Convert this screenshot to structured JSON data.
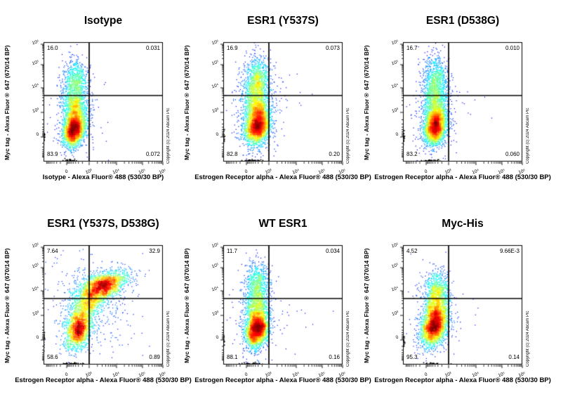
{
  "chart_data": {
    "type": "scatter",
    "subtype": "flow-cytometry-pseudocolor-grid",
    "grid": {
      "rows": 2,
      "cols": 3
    },
    "copyright": "Copyright (c) 2024 Abcam Plc",
    "axes": {
      "y_label": "Myc tag - Alexa Fluor® 647 (670/14 BP)",
      "x_scale": "biexponential",
      "y_scale": "biexponential",
      "x_tick_labels": [
        "0",
        "10³",
        "10⁴",
        "10⁵",
        "10⁶"
      ],
      "y_tick_labels": [
        "10⁶",
        "10⁵",
        "10⁴",
        "10³",
        "0"
      ],
      "x_range": [
        "<0",
        "10⁶"
      ],
      "y_range": [
        "<0",
        "10⁶"
      ],
      "x_quadrant_gate": "10³",
      "y_quadrant_gate": "6×10³"
    },
    "plots": [
      {
        "title": "Isotype",
        "x_label": "Isotype - Alexa Fluor® 488 (530/30 BP)",
        "quadrants": {
          "ul": "16.0",
          "ur": "0.031",
          "ll": "83.9",
          "lr": "0.072"
        },
        "seed": 1234,
        "clusters": [
          {
            "fx": 0.255,
            "fy": 0.735,
            "sx": 0.042,
            "sy": 0.07,
            "n": 2400,
            "rot": 14
          },
          {
            "fx": 0.265,
            "fy": 0.565,
            "sx": 0.052,
            "sy": 0.095,
            "n": 1150,
            "rot": 0
          },
          {
            "fx": 0.27,
            "fy": 0.335,
            "sx": 0.05,
            "sy": 0.095,
            "n": 780,
            "rot": 0
          },
          {
            "fx": 0.265,
            "fy": 0.56,
            "sx": 0.095,
            "sy": 0.21,
            "n": 260,
            "rot": 0
          },
          {
            "fx": 0.5,
            "fy": 0.45,
            "sx": 0.1,
            "sy": 0.15,
            "n": 8,
            "rot": 0
          },
          {
            "fx": 0.23,
            "fy": 1.0,
            "sx": 0.035,
            "sy": 0.008,
            "n": 70,
            "rot": 0,
            "edge": true
          },
          {
            "fx": 0.0,
            "fy": 0.795,
            "sx": 0.006,
            "sy": 0.03,
            "n": 50,
            "rot": 0,
            "edge": true
          }
        ]
      },
      {
        "title": "ESR1 (Y537S)",
        "x_label": "Estrogen Receptor alpha - Alexa Fluor® 488 (530/30 BP)",
        "quadrants": {
          "ul": "16.9",
          "ur": "0.073",
          "ll": "82.8",
          "lr": "0.20"
        },
        "seed": 2011,
        "clusters": [
          {
            "fx": 0.285,
            "fy": 0.705,
            "sx": 0.05,
            "sy": 0.08,
            "n": 2400,
            "rot": 14
          },
          {
            "fx": 0.28,
            "fy": 0.53,
            "sx": 0.055,
            "sy": 0.105,
            "n": 1250,
            "rot": 0
          },
          {
            "fx": 0.285,
            "fy": 0.315,
            "sx": 0.052,
            "sy": 0.1,
            "n": 820,
            "rot": 0
          },
          {
            "fx": 0.28,
            "fy": 0.54,
            "sx": 0.1,
            "sy": 0.23,
            "n": 300,
            "rot": 0
          },
          {
            "fx": 0.5,
            "fy": 0.4,
            "sx": 0.1,
            "sy": 0.12,
            "n": 18,
            "rot": 0
          },
          {
            "fx": 0.24,
            "fy": 1.0,
            "sx": 0.04,
            "sy": 0.008,
            "n": 80,
            "rot": 0,
            "edge": true
          },
          {
            "fx": 0.0,
            "fy": 0.795,
            "sx": 0.006,
            "sy": 0.03,
            "n": 45,
            "rot": 0,
            "edge": true
          }
        ]
      },
      {
        "title": "ESR1 (D538G)",
        "x_label": "Estrogen Receptor alpha - Alexa Fluor® 488 (530/30 BP)",
        "quadrants": {
          "ul": "16.7",
          "ur": "0.010",
          "ll": "83.2",
          "lr": "0.060"
        },
        "seed": 3077,
        "clusters": [
          {
            "fx": 0.27,
            "fy": 0.715,
            "sx": 0.044,
            "sy": 0.075,
            "n": 2400,
            "rot": 12
          },
          {
            "fx": 0.27,
            "fy": 0.54,
            "sx": 0.05,
            "sy": 0.105,
            "n": 1200,
            "rot": 0
          },
          {
            "fx": 0.275,
            "fy": 0.315,
            "sx": 0.05,
            "sy": 0.1,
            "n": 800,
            "rot": 0
          },
          {
            "fx": 0.27,
            "fy": 0.56,
            "sx": 0.09,
            "sy": 0.22,
            "n": 280,
            "rot": 0
          },
          {
            "fx": 0.5,
            "fy": 0.5,
            "sx": 0.1,
            "sy": 0.14,
            "n": 8,
            "rot": 0
          },
          {
            "fx": 0.235,
            "fy": 1.0,
            "sx": 0.04,
            "sy": 0.008,
            "n": 70,
            "rot": 0,
            "edge": true
          },
          {
            "fx": 0.0,
            "fy": 0.795,
            "sx": 0.006,
            "sy": 0.03,
            "n": 45,
            "rot": 0,
            "edge": true
          }
        ]
      },
      {
        "title": "ESR1 (Y537S, D538G)",
        "x_label": "Estrogen Receptor alpha - Alexa Fluor® 488 (530/30 BP)",
        "quadrants": {
          "ul": "7.64",
          "ur": "32.9",
          "ll": "58.6",
          "lr": "0.89"
        },
        "seed": 4099,
        "clusters": [
          {
            "fx": 0.295,
            "fy": 0.705,
            "sx": 0.05,
            "sy": 0.085,
            "n": 1700,
            "rot": 16
          },
          {
            "fx": 0.375,
            "fy": 0.49,
            "sx": 0.1,
            "sy": 0.052,
            "n": 950,
            "rot": -42
          },
          {
            "fx": 0.5,
            "fy": 0.335,
            "sx": 0.105,
            "sy": 0.05,
            "n": 2000,
            "rot": -20
          },
          {
            "fx": 0.4,
            "fy": 0.5,
            "sx": 0.17,
            "sy": 0.2,
            "n": 420,
            "rot": -30
          },
          {
            "fx": 0.25,
            "fy": 1.0,
            "sx": 0.05,
            "sy": 0.008,
            "n": 90,
            "rot": 0,
            "edge": true
          },
          {
            "fx": 0.0,
            "fy": 0.795,
            "sx": 0.006,
            "sy": 0.035,
            "n": 40,
            "rot": 0,
            "edge": true
          }
        ]
      },
      {
        "title": "WT ESR1",
        "x_label": "Estrogen Receptor alpha - Alexa Fluor® 488 (530/30 BP)",
        "quadrants": {
          "ul": "11.7",
          "ur": "0.034",
          "ll": "88.1",
          "lr": "0.16"
        },
        "seed": 5333,
        "clusters": [
          {
            "fx": 0.28,
            "fy": 0.715,
            "sx": 0.046,
            "sy": 0.072,
            "n": 2450,
            "rot": 14
          },
          {
            "fx": 0.28,
            "fy": 0.55,
            "sx": 0.05,
            "sy": 0.1,
            "n": 1050,
            "rot": 0
          },
          {
            "fx": 0.285,
            "fy": 0.335,
            "sx": 0.052,
            "sy": 0.1,
            "n": 720,
            "rot": 0
          },
          {
            "fx": 0.28,
            "fy": 0.56,
            "sx": 0.09,
            "sy": 0.22,
            "n": 260,
            "rot": 0
          },
          {
            "fx": 0.55,
            "fy": 0.62,
            "sx": 0.12,
            "sy": 0.1,
            "n": 16,
            "rot": 0
          },
          {
            "fx": 0.24,
            "fy": 1.0,
            "sx": 0.04,
            "sy": 0.008,
            "n": 75,
            "rot": 0,
            "edge": true
          },
          {
            "fx": 0.0,
            "fy": 0.795,
            "sx": 0.006,
            "sy": 0.03,
            "n": 45,
            "rot": 0,
            "edge": true
          }
        ]
      },
      {
        "title": "Myc-His",
        "x_label": "Estrogen Receptor alpha - Alexa Fluor® 488 (530/30 BP)",
        "quadrants": {
          "ul": "4.52",
          "ur": "9.66E-3",
          "ll": "95.3",
          "lr": "0.14"
        },
        "seed": 6871,
        "clusters": [
          {
            "fx": 0.265,
            "fy": 0.675,
            "sx": 0.05,
            "sy": 0.085,
            "n": 2700,
            "rot": 16
          },
          {
            "fx": 0.275,
            "fy": 0.48,
            "sx": 0.05,
            "sy": 0.085,
            "n": 850,
            "rot": 10
          },
          {
            "fx": 0.285,
            "fy": 0.345,
            "sx": 0.045,
            "sy": 0.07,
            "n": 380,
            "rot": 0
          },
          {
            "fx": 0.27,
            "fy": 0.56,
            "sx": 0.09,
            "sy": 0.2,
            "n": 300,
            "rot": 0
          },
          {
            "fx": 0.5,
            "fy": 0.55,
            "sx": 0.1,
            "sy": 0.15,
            "n": 12,
            "rot": 0
          },
          {
            "fx": 0.24,
            "fy": 1.0,
            "sx": 0.04,
            "sy": 0.008,
            "n": 60,
            "rot": 0,
            "edge": true
          },
          {
            "fx": 0.0,
            "fy": 0.8,
            "sx": 0.006,
            "sy": 0.03,
            "n": 40,
            "rot": 0,
            "edge": true
          }
        ]
      }
    ]
  }
}
